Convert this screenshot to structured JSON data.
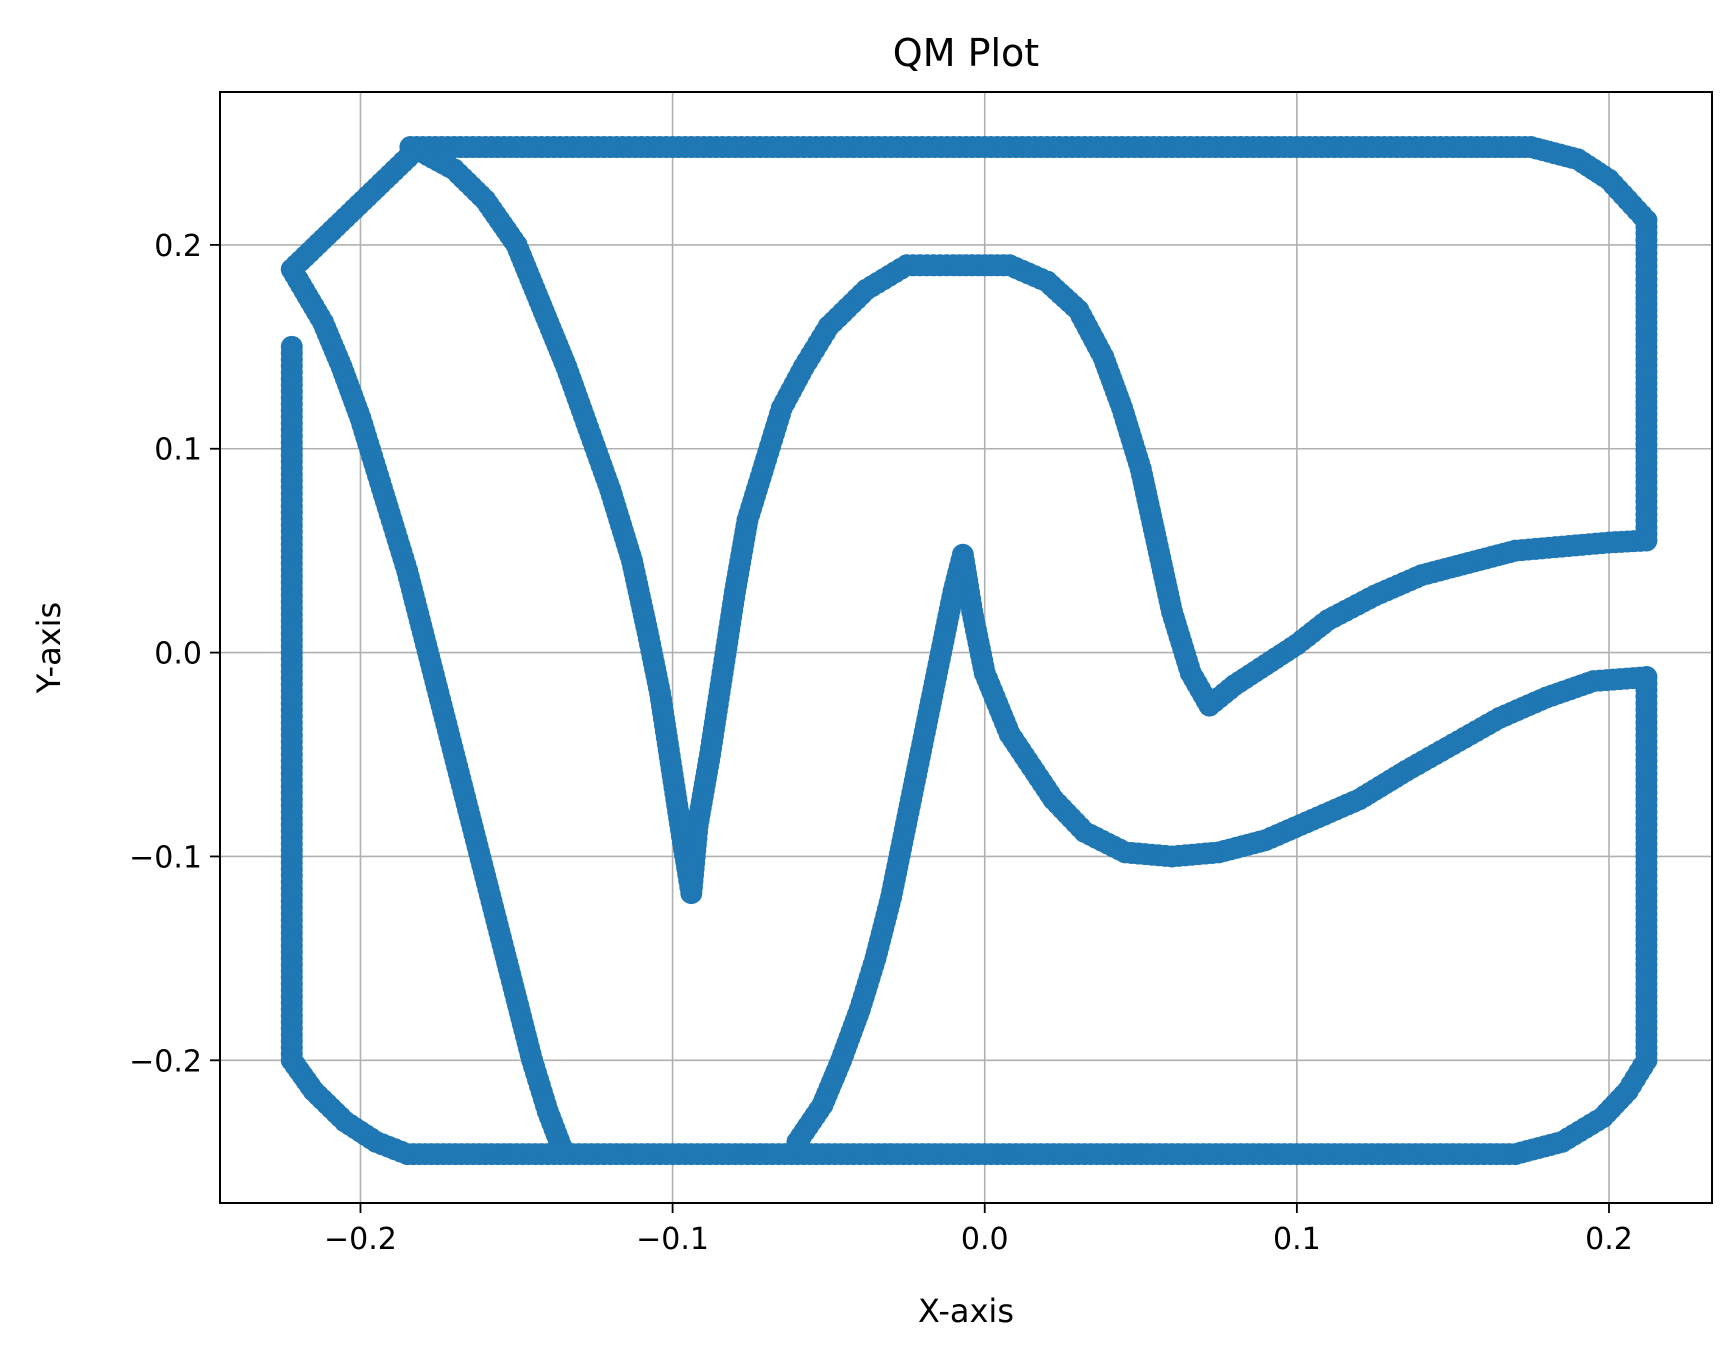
{
  "chart_data": {
    "type": "scatter",
    "title": "QM Plot",
    "xlabel": "X-axis",
    "ylabel": "Y-axis",
    "xlim": [
      -0.245,
      0.233
    ],
    "ylim": [
      -0.27,
      0.275
    ],
    "x_ticks": [
      -0.2,
      -0.1,
      0.0,
      0.1,
      0.2
    ],
    "x_tick_labels": [
      "−0.2",
      "−0.1",
      "0.0",
      "0.1",
      "0.2"
    ],
    "y_ticks": [
      -0.2,
      -0.1,
      0.0,
      0.1,
      0.2
    ],
    "y_tick_labels": [
      "−0.2",
      "−0.1",
      "0.0",
      "0.1",
      "0.2"
    ],
    "grid": true,
    "marker": "circle",
    "color": "#1f77b4",
    "series": [
      {
        "points": [
          [
            -0.184,
            0.248
          ],
          [
            -0.17,
            0.248
          ],
          [
            -0.15,
            0.248
          ],
          [
            -0.12,
            0.248
          ],
          [
            -0.09,
            0.248
          ],
          [
            -0.06,
            0.248
          ],
          [
            -0.03,
            0.248
          ],
          [
            0.0,
            0.248
          ],
          [
            0.03,
            0.248
          ],
          [
            0.06,
            0.248
          ],
          [
            0.09,
            0.248
          ],
          [
            0.12,
            0.248
          ],
          [
            0.15,
            0.248
          ],
          [
            0.175,
            0.248
          ],
          [
            0.19,
            0.242
          ],
          [
            0.2,
            0.232
          ],
          [
            0.206,
            0.222
          ],
          [
            0.212,
            0.212
          ],
          [
            0.212,
            0.18
          ],
          [
            0.212,
            0.15
          ],
          [
            0.212,
            0.12
          ],
          [
            0.212,
            0.09
          ],
          [
            0.212,
            0.055
          ],
          [
            0.2,
            0.054
          ],
          [
            0.185,
            0.052
          ],
          [
            0.17,
            0.05
          ],
          [
            0.155,
            0.044
          ],
          [
            0.14,
            0.038
          ],
          [
            0.125,
            0.028
          ],
          [
            0.11,
            0.016
          ],
          [
            0.1,
            0.004
          ],
          [
            0.09,
            -0.006
          ],
          [
            0.08,
            -0.016
          ],
          [
            0.072,
            -0.026
          ],
          [
            0.066,
            -0.01
          ],
          [
            0.06,
            0.02
          ],
          [
            0.055,
            0.055
          ],
          [
            0.05,
            0.09
          ],
          [
            0.044,
            0.12
          ],
          [
            0.038,
            0.145
          ],
          [
            0.03,
            0.168
          ],
          [
            0.02,
            0.182
          ],
          [
            0.008,
            0.19
          ],
          [
            -0.01,
            0.19
          ],
          [
            -0.025,
            0.19
          ],
          [
            -0.038,
            0.178
          ],
          [
            -0.05,
            0.16
          ],
          [
            -0.058,
            0.14
          ],
          [
            -0.065,
            0.12
          ],
          [
            -0.07,
            0.095
          ],
          [
            -0.076,
            0.065
          ],
          [
            -0.08,
            0.03
          ],
          [
            -0.084,
            -0.01
          ],
          [
            -0.088,
            -0.05
          ],
          [
            -0.092,
            -0.085
          ],
          [
            -0.094,
            -0.118
          ],
          [
            -0.097,
            -0.09
          ],
          [
            -0.1,
            -0.06
          ],
          [
            -0.104,
            -0.02
          ],
          [
            -0.108,
            0.01
          ],
          [
            -0.113,
            0.045
          ],
          [
            -0.12,
            0.08
          ],
          [
            -0.127,
            0.11
          ],
          [
            -0.134,
            0.14
          ],
          [
            -0.142,
            0.17
          ],
          [
            -0.15,
            0.2
          ],
          [
            -0.16,
            0.222
          ],
          [
            -0.17,
            0.237
          ],
          [
            -0.182,
            0.247
          ],
          [
            -0.222,
            0.188
          ],
          [
            -0.212,
            0.162
          ],
          [
            -0.206,
            0.14
          ],
          [
            -0.2,
            0.115
          ],
          [
            -0.195,
            0.09
          ],
          [
            -0.19,
            0.065
          ],
          [
            -0.185,
            0.04
          ],
          [
            -0.18,
            0.01
          ],
          [
            -0.175,
            -0.02
          ],
          [
            -0.17,
            -0.05
          ],
          [
            -0.165,
            -0.08
          ],
          [
            -0.16,
            -0.11
          ],
          [
            -0.155,
            -0.14
          ],
          [
            -0.15,
            -0.17
          ],
          [
            -0.145,
            -0.2
          ],
          [
            -0.14,
            -0.225
          ],
          [
            -0.135,
            -0.245
          ],
          [
            -0.222,
            0.15
          ],
          [
            -0.222,
            0.1
          ],
          [
            -0.222,
            0.05
          ],
          [
            -0.222,
            0.0
          ],
          [
            -0.222,
            -0.05
          ],
          [
            -0.222,
            -0.1
          ],
          [
            -0.222,
            -0.15
          ],
          [
            -0.222,
            -0.2
          ],
          [
            -0.215,
            -0.215
          ],
          [
            -0.205,
            -0.23
          ],
          [
            -0.195,
            -0.24
          ],
          [
            -0.185,
            -0.246
          ],
          [
            -0.16,
            -0.246
          ],
          [
            -0.13,
            -0.246
          ],
          [
            -0.1,
            -0.246
          ],
          [
            -0.07,
            -0.246
          ],
          [
            -0.04,
            -0.246
          ],
          [
            -0.01,
            -0.246
          ],
          [
            0.02,
            -0.246
          ],
          [
            0.05,
            -0.246
          ],
          [
            0.08,
            -0.246
          ],
          [
            0.11,
            -0.246
          ],
          [
            0.14,
            -0.246
          ],
          [
            0.17,
            -0.246
          ],
          [
            0.185,
            -0.24
          ],
          [
            0.198,
            -0.228
          ],
          [
            0.206,
            -0.215
          ],
          [
            0.212,
            -0.2
          ],
          [
            0.212,
            -0.15
          ],
          [
            0.212,
            -0.1
          ],
          [
            0.212,
            -0.05
          ],
          [
            0.212,
            -0.012
          ],
          [
            0.195,
            -0.014
          ],
          [
            0.18,
            -0.022
          ],
          [
            0.165,
            -0.032
          ],
          [
            0.15,
            -0.045
          ],
          [
            0.135,
            -0.058
          ],
          [
            0.12,
            -0.072
          ],
          [
            0.105,
            -0.082
          ],
          [
            0.09,
            -0.092
          ],
          [
            0.075,
            -0.098
          ],
          [
            0.06,
            -0.1
          ],
          [
            0.045,
            -0.098
          ],
          [
            0.032,
            -0.088
          ],
          [
            0.022,
            -0.072
          ],
          [
            0.015,
            -0.056
          ],
          [
            0.008,
            -0.04
          ],
          [
            0.004,
            -0.025
          ],
          [
            0.0,
            -0.01
          ],
          [
            -0.004,
            0.02
          ],
          [
            -0.007,
            0.048
          ],
          [
            -0.01,
            0.03
          ],
          [
            -0.014,
            0.0
          ],
          [
            -0.018,
            -0.03
          ],
          [
            -0.022,
            -0.06
          ],
          [
            -0.026,
            -0.09
          ],
          [
            -0.03,
            -0.12
          ],
          [
            -0.035,
            -0.15
          ],
          [
            -0.04,
            -0.175
          ],
          [
            -0.046,
            -0.2
          ],
          [
            -0.052,
            -0.222
          ],
          [
            -0.06,
            -0.24
          ]
        ]
      }
    ]
  }
}
